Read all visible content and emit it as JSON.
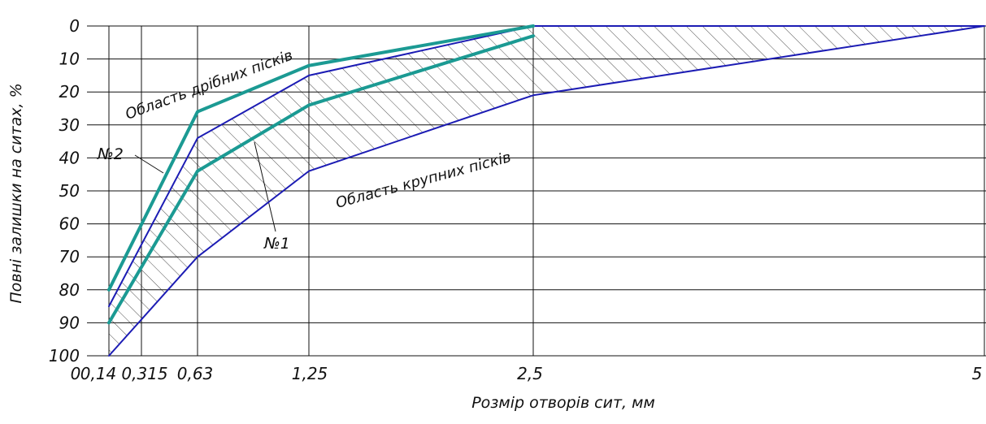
{
  "chart_data": {
    "type": "line",
    "xlabel": "Розмір отворів сит, мм",
    "ylabel": "Повні залишки на ситах, %",
    "x_ticks": [
      "0",
      "0,14",
      "0,315",
      "0,63",
      "1,25",
      "2,5",
      "5"
    ],
    "y_ticks": [
      "0",
      "10",
      "20",
      "30",
      "40",
      "50",
      "60",
      "70",
      "80",
      "90",
      "100"
    ],
    "ylim": [
      0,
      100
    ],
    "y_inverted": true,
    "grid": true,
    "x_categories": [
      "0,14",
      "0,315",
      "0,63",
      "1,25",
      "2,5",
      "5"
    ],
    "series": [
      {
        "name": "№2",
        "color": "#1b9a93",
        "width": 4,
        "points": [
          [
            "0,14",
            80
          ],
          [
            "0,63",
            26
          ],
          [
            "1,25",
            12
          ],
          [
            "2,5",
            0
          ]
        ]
      },
      {
        "name": "№1",
        "color": "#1b9a93",
        "width": 4,
        "points": [
          [
            "0,14",
            90
          ],
          [
            "0,63",
            44
          ],
          [
            "1,25",
            24
          ],
          [
            "2,5",
            3
          ]
        ]
      },
      {
        "name": "",
        "color": "#1c1cb4",
        "width": 2,
        "points": [
          [
            "0,14",
            85
          ],
          [
            "0,63",
            34
          ],
          [
            "1,25",
            15
          ],
          [
            "2,5",
            0
          ],
          [
            "5",
            0
          ]
        ]
      },
      {
        "name": "",
        "color": "#1c1cb4",
        "width": 2,
        "points": [
          [
            "0,14",
            100
          ],
          [
            "0,63",
            70
          ],
          [
            "1,25",
            44
          ],
          [
            "2,5",
            21
          ],
          [
            "5",
            0
          ]
        ]
      }
    ],
    "annotations": [
      {
        "text": "Область дрібних пісків"
      },
      {
        "text": "Область крупних пісків"
      },
      {
        "text": "№2"
      },
      {
        "text": "№1"
      }
    ]
  }
}
